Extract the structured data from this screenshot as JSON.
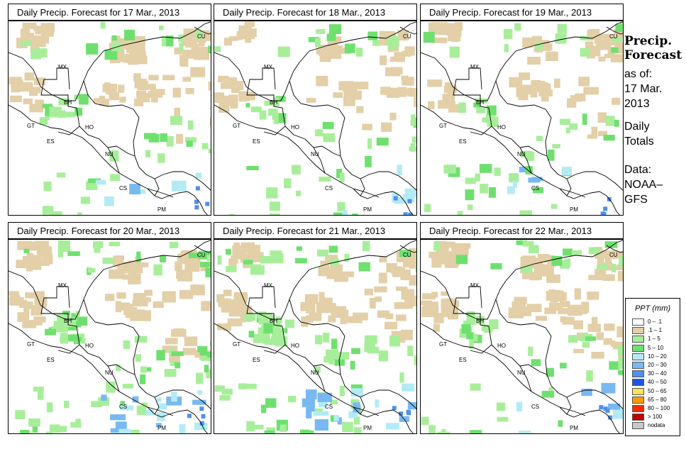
{
  "panels": [
    {
      "title": "Daily Precip. Forecast for  17 Mar., 2013"
    },
    {
      "title": "Daily Precip. Forecast for  18 Mar., 2013"
    },
    {
      "title": "Daily Precip. Forecast for  19 Mar., 2013"
    },
    {
      "title": "Daily Precip. Forecast for  20 Mar., 2013"
    },
    {
      "title": "Daily Precip. Forecast for  21 Mar., 2013"
    },
    {
      "title": "Daily Precip. Forecast for  22 Mar., 2013"
    }
  ],
  "map_labels": {
    "mx": "MX",
    "bh": "BH",
    "gt": "GT",
    "ho": "HO",
    "es": "ES",
    "nu": "NU",
    "cs": "CS",
    "pm": "PM",
    "cu": "CU"
  },
  "sidebar": {
    "title_line1": "Precip.",
    "title_line2": "Forecast",
    "asof": "as of:",
    "date_line1": "17 Mar.",
    "date_line2": "2013",
    "daily_line1": "Daily",
    "daily_line2": "Totals",
    "data_line1": "Data:",
    "data_line2": "NOAA–",
    "data_line3": "GFS"
  },
  "legend": {
    "title": "PPT (mm)",
    "items": [
      {
        "label": "0 – .1",
        "color": "#ffffff"
      },
      {
        "label": ".1 – 1",
        "color": "#e3cfa8"
      },
      {
        "label": "1 – 5",
        "color": "#a8ee9a"
      },
      {
        "label": "5 – 10",
        "color": "#6fe06f"
      },
      {
        "label": "10 – 20",
        "color": "#b3ebf5"
      },
      {
        "label": "20 – 30",
        "color": "#79b9f2"
      },
      {
        "label": "30 – 40",
        "color": "#4f8ff0"
      },
      {
        "label": "40 – 50",
        "color": "#1f55e6"
      },
      {
        "label": "50 – 65",
        "color": "#ffe25a"
      },
      {
        "label": "65 – 80",
        "color": "#ff9a00"
      },
      {
        "label": "80 – 100",
        "color": "#ff2a00"
      },
      {
        "label": "> 100",
        "color": "#c00000"
      },
      {
        "label": "nodata",
        "color": "#c8c8c8"
      }
    ]
  }
}
